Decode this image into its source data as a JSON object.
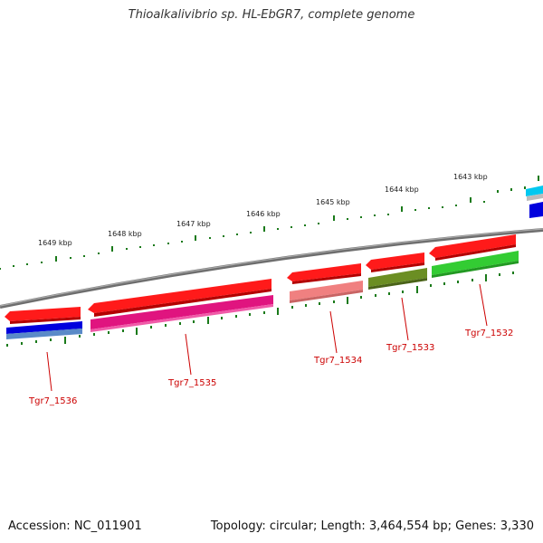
{
  "title": "Thioalkalivibrio sp. HL-EbGR7, complete genome",
  "footer": {
    "accession": "Accession: NC_011901",
    "summary": "Topology: circular; Length: 3,464,554 bp; Genes: 3,330"
  },
  "ticks": [
    "1643 kbp",
    "1644 kbp",
    "1645 kbp",
    "1646 kbp",
    "1647 kbp",
    "1648 kbp",
    "1649 kbp"
  ],
  "genes": [
    "Tgr7_1532",
    "Tgr7_1533",
    "Tgr7_1534",
    "Tgr7_1535",
    "Tgr7_1536"
  ],
  "colors": {
    "backbone": "#808080",
    "tick": "#1a7a1a",
    "cds": "#ff0000",
    "label": "#cc0000"
  }
}
